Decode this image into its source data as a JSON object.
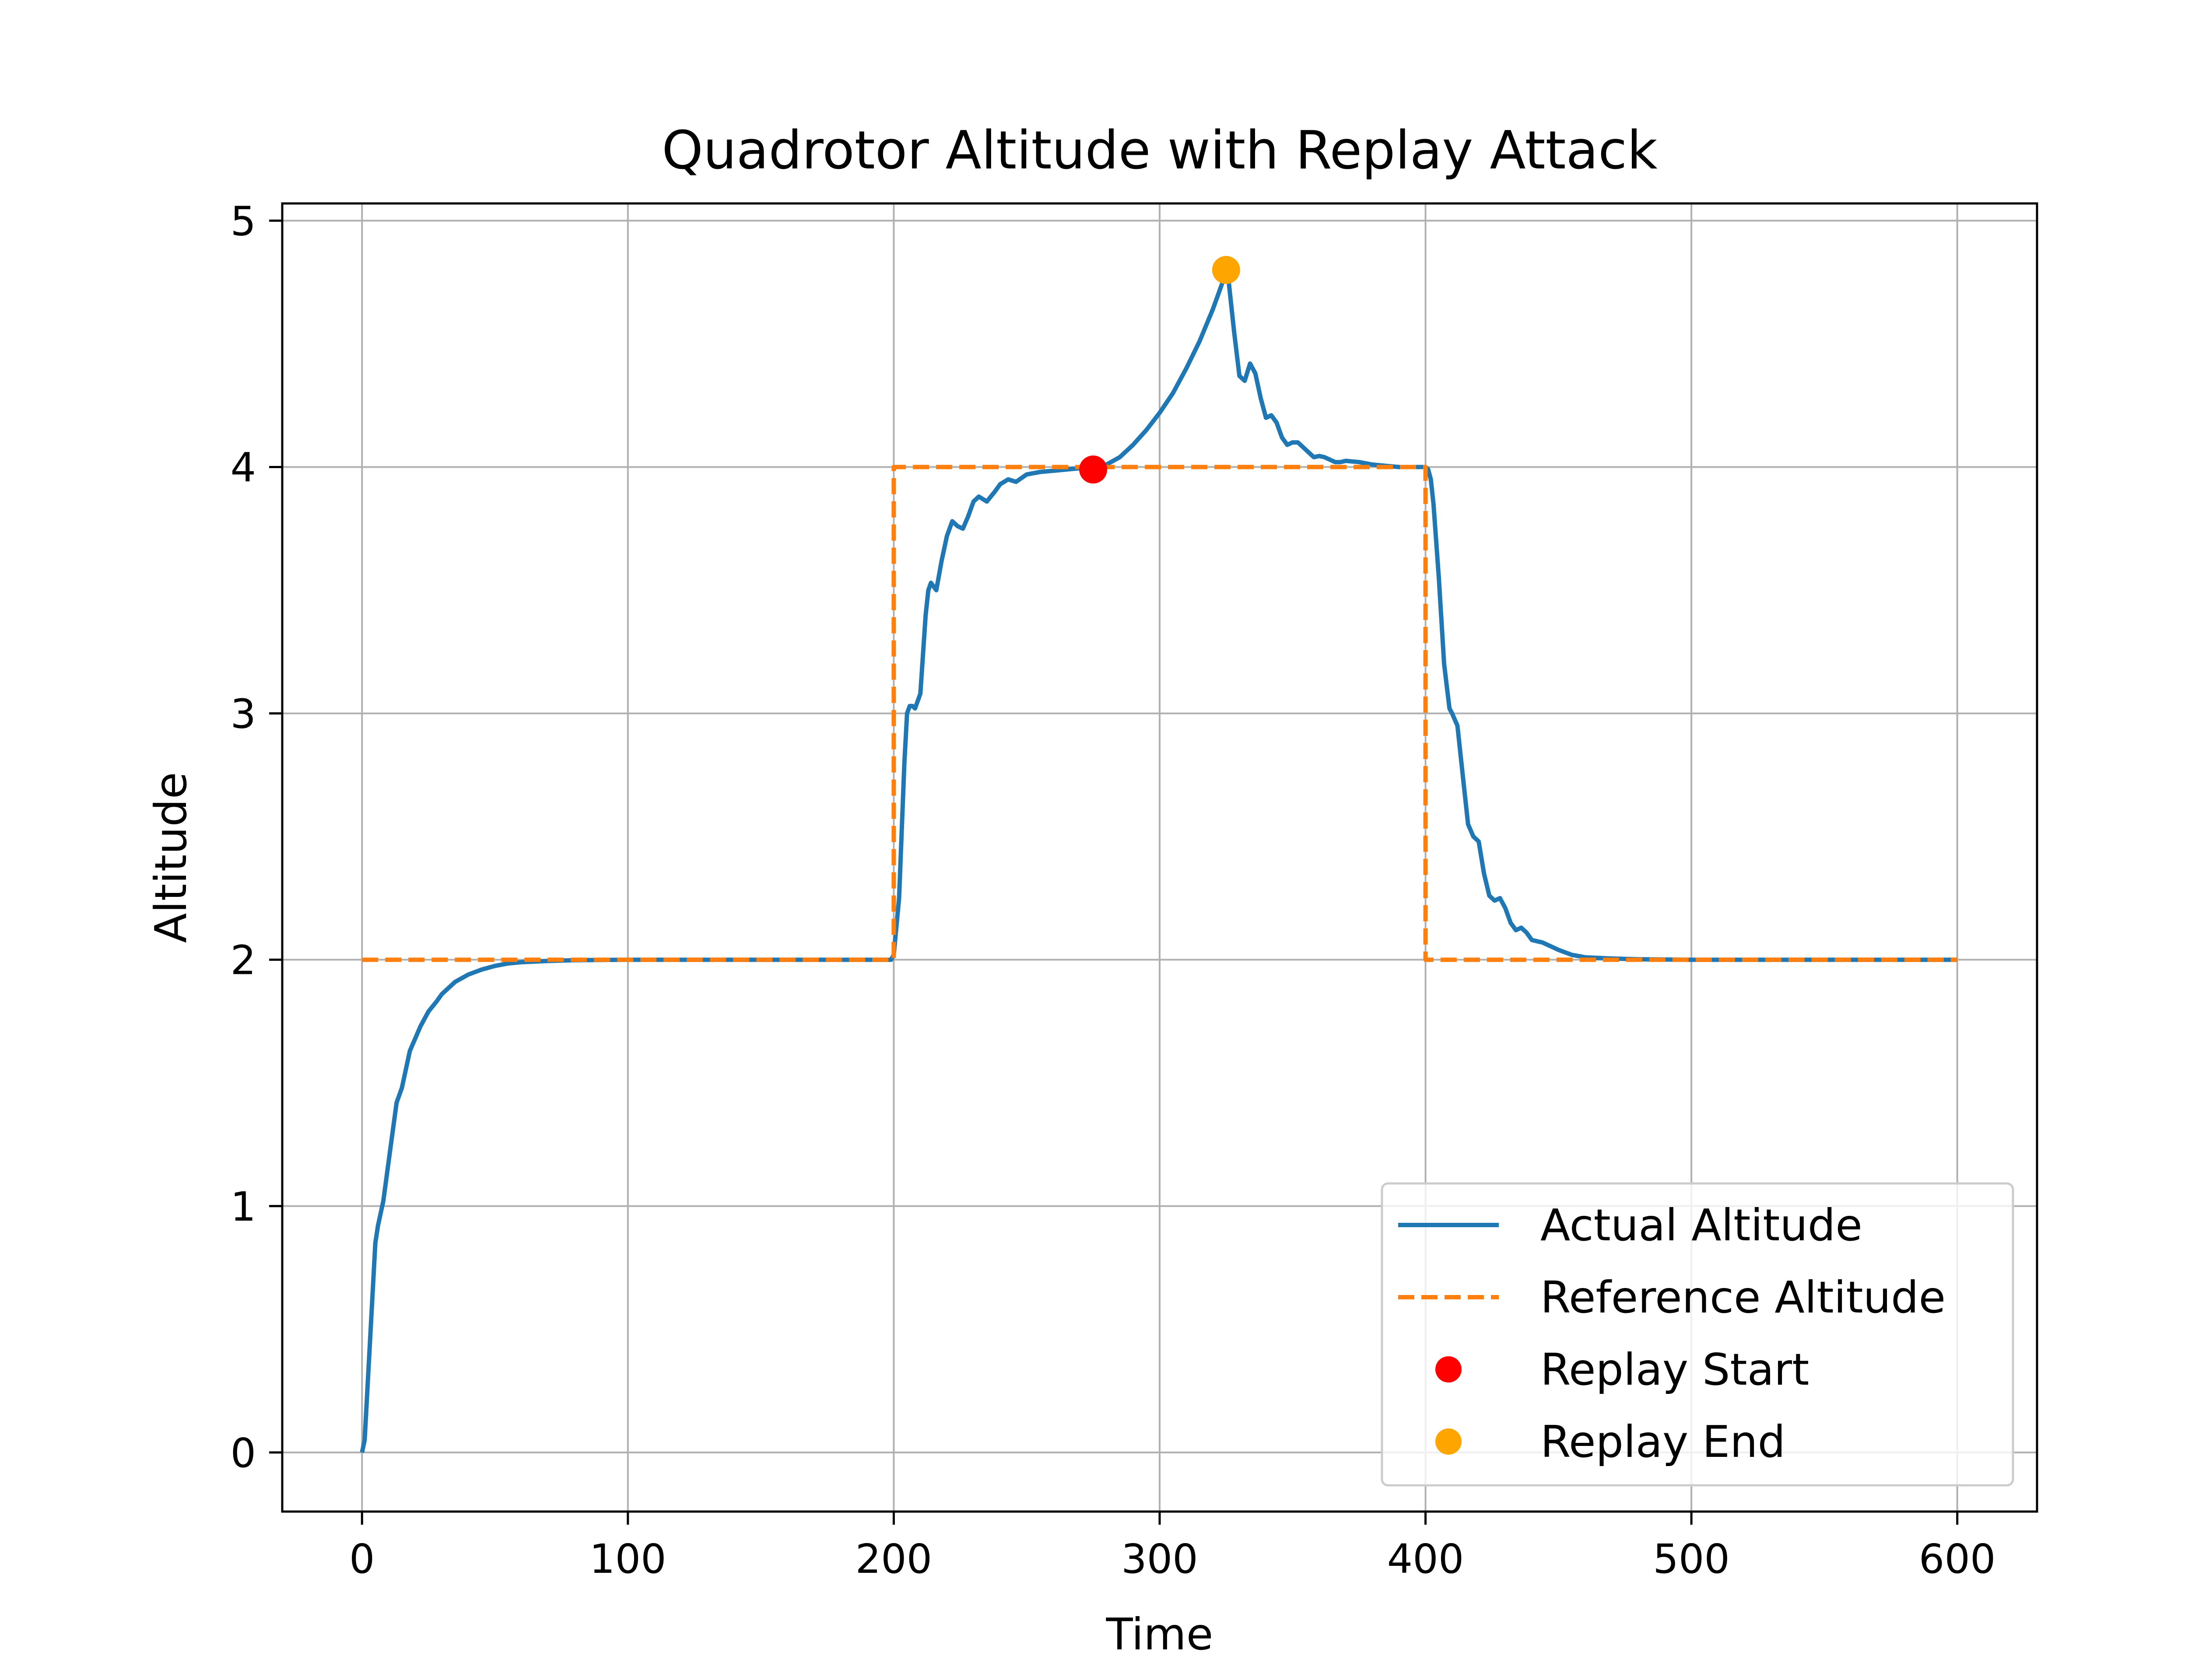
{
  "chart_data": {
    "type": "line",
    "title": "Quadrotor Altitude with Replay Attack",
    "xlabel": "Time",
    "ylabel": "Altitude",
    "xlim": [
      -30,
      630
    ],
    "ylim": [
      -0.24,
      5.07
    ],
    "xticks": [
      0,
      100,
      200,
      300,
      400,
      500,
      600
    ],
    "yticks": [
      0,
      1,
      2,
      3,
      4,
      5
    ],
    "grid": true,
    "legend_position": "lower-right",
    "series": [
      {
        "name": "Actual Altitude",
        "color": "#1f77b4",
        "style": "solid",
        "x": [
          0,
          1,
          3,
          5,
          6,
          8,
          10,
          13,
          15,
          18,
          20,
          22,
          25,
          28,
          30,
          35,
          40,
          45,
          50,
          55,
          60,
          70,
          80,
          100,
          150,
          199,
          200,
          202,
          204,
          205,
          206,
          207,
          208,
          210,
          212,
          213,
          214,
          216,
          218,
          220,
          222,
          224,
          226,
          228,
          230,
          232,
          235,
          238,
          240,
          243,
          246,
          250,
          255,
          260,
          265,
          270,
          275,
          280,
          285,
          290,
          295,
          300,
          305,
          310,
          315,
          320,
          322,
          324,
          325,
          326,
          328,
          330,
          332,
          334,
          336,
          338,
          340,
          342,
          344,
          346,
          348,
          350,
          352,
          354,
          356,
          358,
          360,
          362,
          364,
          366,
          368,
          370,
          375,
          380,
          385,
          390,
          395,
          400,
          401,
          402,
          403,
          405,
          407,
          409,
          410,
          412,
          414,
          416,
          418,
          420,
          422,
          424,
          426,
          428,
          430,
          432,
          434,
          436,
          438,
          440,
          442,
          444,
          446,
          448,
          450,
          455,
          460,
          470,
          480,
          500,
          550,
          600
        ],
        "y": [
          0.0,
          0.05,
          0.45,
          0.85,
          0.92,
          1.02,
          1.18,
          1.42,
          1.48,
          1.63,
          1.68,
          1.73,
          1.79,
          1.83,
          1.86,
          1.91,
          1.94,
          1.96,
          1.975,
          1.985,
          1.99,
          1.995,
          1.998,
          2.0,
          2.0,
          2.0,
          2.02,
          2.25,
          2.8,
          3.0,
          3.03,
          3.03,
          3.02,
          3.08,
          3.4,
          3.5,
          3.53,
          3.5,
          3.62,
          3.72,
          3.78,
          3.76,
          3.75,
          3.8,
          3.86,
          3.88,
          3.86,
          3.9,
          3.93,
          3.95,
          3.94,
          3.97,
          3.98,
          3.985,
          3.99,
          3.995,
          4.0,
          4.01,
          4.04,
          4.09,
          4.15,
          4.22,
          4.3,
          4.4,
          4.51,
          4.64,
          4.7,
          4.76,
          4.8,
          4.75,
          4.55,
          4.37,
          4.35,
          4.42,
          4.38,
          4.28,
          4.2,
          4.21,
          4.18,
          4.12,
          4.09,
          4.1,
          4.1,
          4.08,
          4.06,
          4.04,
          4.045,
          4.04,
          4.03,
          4.02,
          4.02,
          4.025,
          4.02,
          4.01,
          4.005,
          4.0,
          4.0,
          4.0,
          3.99,
          3.95,
          3.85,
          3.55,
          3.2,
          3.02,
          3.0,
          2.95,
          2.75,
          2.55,
          2.5,
          2.48,
          2.35,
          2.26,
          2.24,
          2.25,
          2.21,
          2.15,
          2.12,
          2.13,
          2.11,
          2.08,
          2.075,
          2.07,
          2.06,
          2.05,
          2.04,
          2.02,
          2.01,
          2.005,
          2.002,
          2.0,
          2.0,
          2.0
        ]
      },
      {
        "name": "Reference Altitude",
        "color": "#ff7f0e",
        "style": "dashed",
        "x": [
          0,
          200,
          200,
          400,
          400,
          600
        ],
        "y": [
          2,
          2,
          4,
          4,
          2,
          2
        ]
      }
    ],
    "points": [
      {
        "name": "Replay Start",
        "color": "#ff0000",
        "x": 275,
        "y": 3.99
      },
      {
        "name": "Replay End",
        "color": "#ffa500",
        "x": 325,
        "y": 4.8
      }
    ]
  }
}
